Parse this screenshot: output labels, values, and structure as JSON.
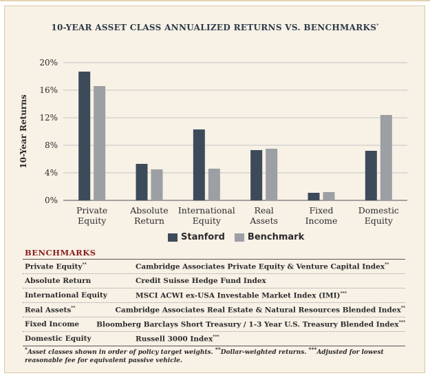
{
  "chart_data": {
    "type": "bar",
    "title": "10-YEAR ASSET CLASS ANNUALIZED RETURNS VS. BENCHMARKS",
    "title_mark": "*",
    "ylabel": "10-Year Returns",
    "xlabel": "",
    "ylim": [
      0,
      20
    ],
    "y_ticks": [
      0,
      4,
      8,
      12,
      16,
      20
    ],
    "y_tick_labels": [
      "0%",
      "4%",
      "8%",
      "12%",
      "16%",
      "20%"
    ],
    "grid": true,
    "legend_position": "bottom-center",
    "categories": [
      [
        "Private",
        "Equity"
      ],
      [
        "Absolute",
        "Return"
      ],
      [
        "International",
        "Equity"
      ],
      [
        "Real",
        "Assets"
      ],
      [
        "Fixed",
        "Income"
      ],
      [
        "Domestic",
        "Equity"
      ]
    ],
    "series": [
      {
        "name": "Stanford",
        "color": "#3d4a5a",
        "values": [
          18.7,
          5.3,
          10.3,
          7.3,
          1.1,
          7.2
        ]
      },
      {
        "name": "Benchmark",
        "color": "#9c9fa3",
        "values": [
          16.6,
          4.5,
          4.6,
          7.5,
          1.2,
          12.4
        ]
      }
    ]
  },
  "benchmarks": {
    "heading": "BENCHMARKS",
    "rows": [
      {
        "asset": "Private Equity",
        "asset_mark": "**",
        "index": "Cambridge Associates Private Equity & Venture Capital Index",
        "index_mark": "**"
      },
      {
        "asset": "Absolute Return",
        "asset_mark": "",
        "index": "Credit Suisse Hedge Fund Index",
        "index_mark": ""
      },
      {
        "asset": "International Equity",
        "asset_mark": "",
        "index": "MSCI ACWI ex-USA Investable Market Index (IMI)",
        "index_mark": "***"
      },
      {
        "asset": "Real Assets",
        "asset_mark": "**",
        "index": "Cambridge Associates Real Estate & Natural Resources Blended Index",
        "index_mark": "**"
      },
      {
        "asset": "Fixed Income",
        "asset_mark": "",
        "index": "Bloomberg Barclays Short Treasury / 1-3 Year U.S. Treasury Blended Index",
        "index_mark": "***"
      },
      {
        "asset": "Domestic Equity",
        "asset_mark": "",
        "index": "Russell 3000 Index",
        "index_mark": "***"
      }
    ]
  },
  "footnote": {
    "mark1": "*",
    "text1": "Asset classes shown in order of policy target weights. ",
    "mark2": "**",
    "text2": "Dollar-weighted returns. ",
    "mark3": "***",
    "text3": "Adjusted for lowest reasonable fee for equivalent passive vehicle."
  }
}
